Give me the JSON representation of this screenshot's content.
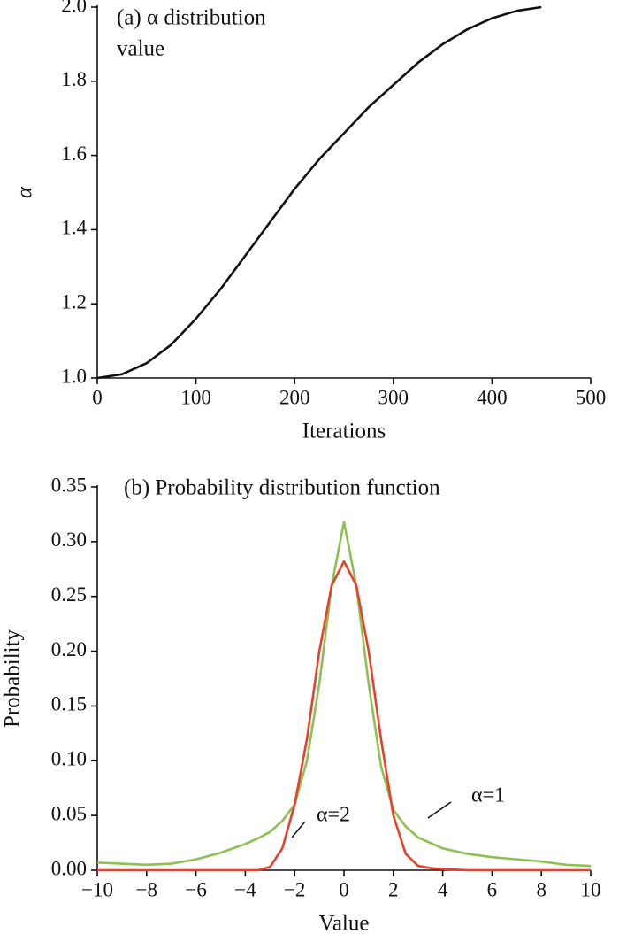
{
  "chart_data": [
    {
      "type": "line",
      "title": [
        "(a) α distribution",
        "value"
      ],
      "xlabel": "Iterations",
      "ylabel": "α",
      "x": [
        0,
        25,
        50,
        75,
        100,
        125,
        150,
        175,
        200,
        225,
        250,
        275,
        300,
        325,
        350,
        375,
        400,
        425,
        450
      ],
      "series": [
        {
          "color": "#111111",
          "values": [
            1.0,
            1.01,
            1.04,
            1.09,
            1.16,
            1.24,
            1.33,
            1.42,
            1.51,
            1.59,
            1.66,
            1.73,
            1.79,
            1.85,
            1.9,
            1.94,
            1.97,
            1.99,
            2.0
          ]
        }
      ],
      "xlim": [
        0,
        500
      ],
      "xticks": [
        0,
        100,
        200,
        300,
        400,
        500
      ],
      "ylim": [
        1.0,
        2.0
      ],
      "yticks": [
        {
          "value": 1.0,
          "label": "1.0"
        },
        {
          "value": 1.2,
          "label": "1.2"
        },
        {
          "value": 1.4,
          "label": "1.4"
        },
        {
          "value": 1.6,
          "label": "1.6"
        },
        {
          "value": 1.8,
          "label": "1.8"
        },
        {
          "value": 2.0,
          "label": "2.0"
        }
      ]
    },
    {
      "type": "line",
      "title": [
        "(b) Probability distribution function"
      ],
      "xlabel": "Value",
      "ylabel": "Probability",
      "x": [
        -10,
        -9,
        -8,
        -7,
        -6,
        -5,
        -4,
        -3.5,
        -3,
        -2.5,
        -2,
        -1.5,
        -1,
        -0.5,
        0,
        0.5,
        1,
        1.5,
        2,
        2.5,
        3,
        3.5,
        4,
        5,
        6,
        7,
        8,
        9,
        10
      ],
      "series": [
        {
          "name": "α=1",
          "color": "#8cc152",
          "values": [
            0.007,
            0.006,
            0.005,
            0.006,
            0.01,
            0.016,
            0.024,
            0.029,
            0.035,
            0.045,
            0.06,
            0.1,
            0.17,
            0.26,
            0.318,
            0.26,
            0.17,
            0.095,
            0.055,
            0.04,
            0.03,
            0.025,
            0.02,
            0.015,
            0.012,
            0.01,
            0.008,
            0.005,
            0.004
          ]
        },
        {
          "name": "α=2",
          "color": "#e8402a",
          "values": [
            0,
            0,
            0,
            0,
            0,
            0,
            0,
            0,
            0.003,
            0.02,
            0.06,
            0.12,
            0.2,
            0.26,
            0.282,
            0.26,
            0.2,
            0.12,
            0.05,
            0.015,
            0.004,
            0.002,
            0.001,
            0,
            0,
            0,
            0,
            0,
            0
          ]
        }
      ],
      "xlim": [
        -10,
        10
      ],
      "xticks": [
        {
          "value": -10,
          "label": "−10"
        },
        {
          "value": -8,
          "label": "−8"
        },
        {
          "value": -6,
          "label": "−6"
        },
        {
          "value": -4,
          "label": "−4"
        },
        {
          "value": -2,
          "label": "−2"
        },
        0,
        2,
        4,
        6,
        8,
        10
      ],
      "ylim": [
        0,
        0.35
      ],
      "yticks": [
        {
          "value": 0,
          "label": "0.00"
        },
        {
          "value": 0.05,
          "label": "0.05"
        },
        {
          "value": 0.1,
          "label": "0.10"
        },
        {
          "value": 0.15,
          "label": "0.15"
        },
        {
          "value": 0.2,
          "label": "0.20"
        },
        {
          "value": 0.25,
          "label": "0.25"
        },
        {
          "value": 0.3,
          "label": "0.30"
        },
        {
          "value": 0.35,
          "label": "0.35"
        }
      ]
    }
  ]
}
